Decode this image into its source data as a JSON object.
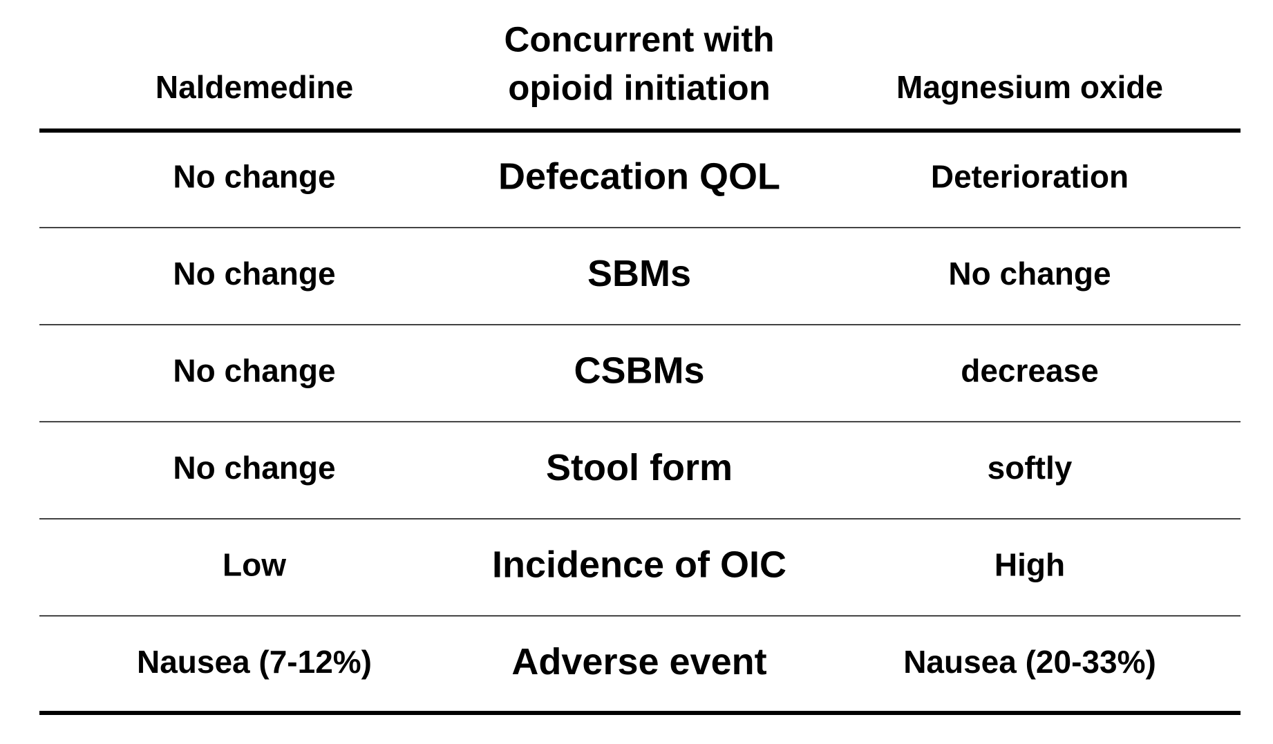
{
  "table": {
    "header": [
      "Naldemedine",
      [
        "Concurrent with",
        "opioid initiation"
      ],
      "Magnesium oxide"
    ],
    "rows": [
      [
        "No change",
        "Defecation QOL",
        "Deterioration"
      ],
      [
        "No change",
        "SBMs",
        "No change"
      ],
      [
        "No change",
        "CSBMs",
        "decrease"
      ],
      [
        "No change",
        "Stool form",
        "softly"
      ],
      [
        "Low",
        "Incidence of OIC",
        "High"
      ],
      [
        "Nausea (7-12%)",
        "Adverse event",
        "Nausea (20-33%)"
      ]
    ]
  }
}
